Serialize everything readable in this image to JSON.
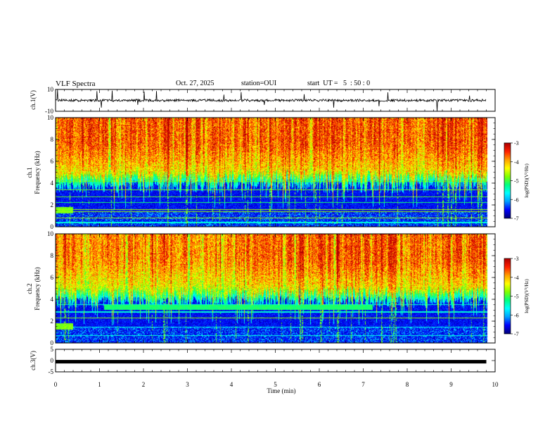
{
  "header": {
    "title": "VLF Spectra",
    "date": "Oct. 27, 2025",
    "station": "station=OUI",
    "start": "start  UT =   5  : 50 : 0"
  },
  "chart_data": [
    {
      "type": "line",
      "panel": "ch1-waveform",
      "ylabel": "ch.1(V)",
      "ylim": [
        -10,
        10
      ],
      "yticks": [
        "10",
        "-10"
      ],
      "xlim": [
        0,
        10
      ],
      "baseline": 0,
      "color": "#000000"
    },
    {
      "type": "heatmap",
      "panel": "ch1-spectrogram",
      "ylabel": "ch.1\nFrequency (kHz)",
      "ylim": [
        0,
        10
      ],
      "yticks": [
        0,
        2,
        4,
        6,
        8,
        10
      ],
      "xlim": [
        0,
        10
      ],
      "data_extent_min": 9.8,
      "colorbar": {
        "label": "log(PSD)(V²/Hz)",
        "ticks": [
          "-3",
          "-4",
          "-5",
          "-6",
          "-7"
        ],
        "range": [
          -7,
          -3
        ]
      }
    },
    {
      "type": "heatmap",
      "panel": "ch2-spectrogram",
      "ylabel": "ch.2\nFrequency (kHz)",
      "ylim": [
        0,
        10
      ],
      "yticks": [
        0,
        2,
        4,
        6,
        8,
        10
      ],
      "xlim": [
        0,
        10
      ],
      "data_extent_min": 9.8,
      "band": {
        "t_start": 1.1,
        "t_end": 7.2,
        "f_low": 3.0,
        "f_high": 3.5
      },
      "colorbar": {
        "label": "log(PSD)(V²/Hz)",
        "ticks": [
          "-3",
          "-4",
          "-5",
          "-6",
          "-7"
        ],
        "range": [
          -7,
          -3
        ]
      }
    },
    {
      "type": "line",
      "panel": "ch3-waveform",
      "ylabel": "ch.3(V)",
      "ylim": [
        -5,
        5
      ],
      "yticks": [
        "5",
        "0",
        "-5"
      ],
      "xlim": [
        0,
        10
      ],
      "level": -0.5,
      "color": "#000000"
    }
  ],
  "xaxis": {
    "label": "Time (min)",
    "ticks": [
      "0",
      "1",
      "2",
      "3",
      "4",
      "5",
      "6",
      "7",
      "8",
      "9",
      "10"
    ]
  },
  "colors": {
    "scale": [
      "#00007a",
      "#0000ff",
      "#00a0ff",
      "#00ffff",
      "#00ff80",
      "#80ff00",
      "#ffff00",
      "#ffa000",
      "#ff2000",
      "#b00000"
    ]
  }
}
